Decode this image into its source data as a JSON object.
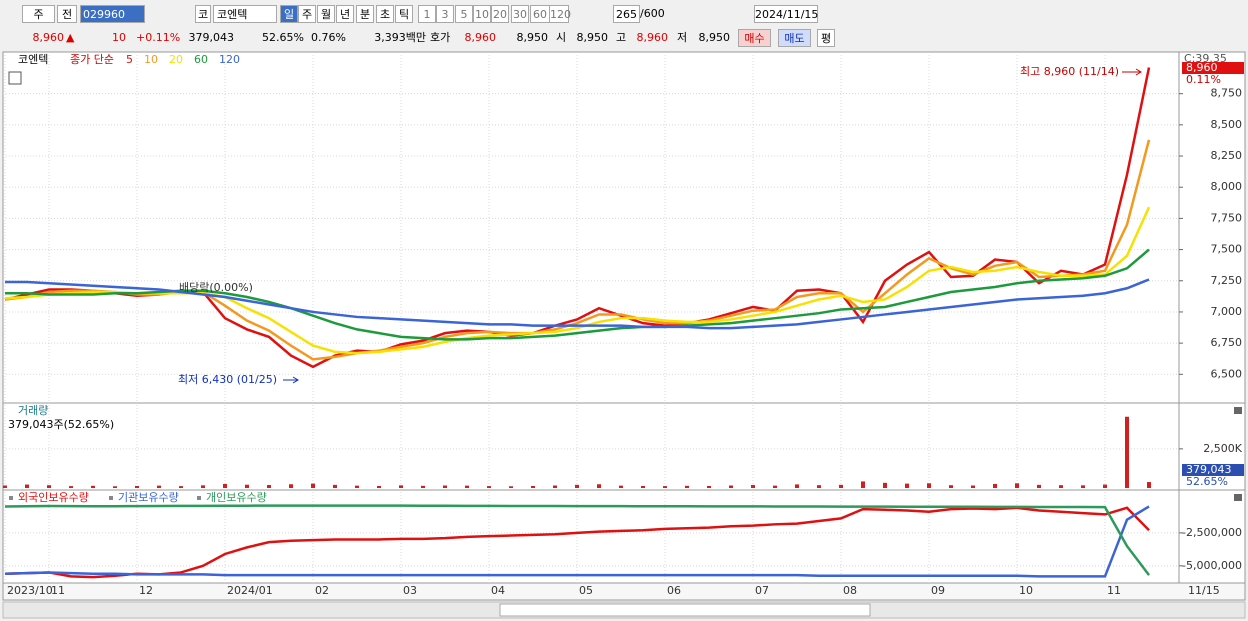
{
  "toolbar": {
    "market": "주",
    "mode": "전",
    "code": "029960",
    "market2": "코",
    "name": "코엔텍",
    "periods": [
      "일",
      "주",
      "월",
      "년",
      "분",
      "초",
      "틱"
    ],
    "intervals": [
      "1",
      "3",
      "5",
      "10",
      "20",
      "30",
      "60",
      "120"
    ],
    "count": "265",
    "max": "/600",
    "date": "2024/11/15"
  },
  "quote": {
    "price": "8,960",
    "arrow": "▲",
    "change": "10",
    "change_pct": "+0.11%",
    "volume": "379,043",
    "volume_ratio": "52.65%",
    "turnover": "0.76%",
    "amount": "3,393백만",
    "ask_label": "호가",
    "ask": "8,960",
    "bid": "8,950",
    "open_label": "시",
    "open": "8,950",
    "high_label": "고",
    "high": "8,960",
    "low_label": "저",
    "low": "8,950",
    "buy": "매수",
    "sell": "매도",
    "avg": "평"
  },
  "chart_data": [
    {
      "type": "line",
      "title": "코엔텍",
      "legend_title": "종가 단순",
      "x_end_label": "11/15",
      "cursor_label": "C:39.35",
      "last_price_label": "8,960",
      "last_change_label": "0.11%",
      "annotations": [
        "최고 8,960 (11/14)",
        "최저 6,430 (01/25)",
        "배당락(0.00%)"
      ],
      "categories": [
        "2023/10",
        null,
        "11",
        null,
        null,
        null,
        "12",
        null,
        null,
        null,
        "2024/01",
        null,
        null,
        null,
        "02",
        null,
        null,
        null,
        "03",
        null,
        null,
        null,
        "04",
        null,
        null,
        null,
        "05",
        null,
        null,
        null,
        "06",
        null,
        null,
        null,
        "07",
        null,
        null,
        null,
        "08",
        null,
        null,
        null,
        "09",
        null,
        null,
        null,
        "10",
        null,
        null,
        null,
        "11",
        null,
        null
      ],
      "ylim": [
        6270,
        9060
      ],
      "yticks": [
        {
          "value": 6500,
          "label": "6,500"
        },
        {
          "value": 6750,
          "label": "6,750"
        },
        {
          "value": 7000,
          "label": "7,000"
        },
        {
          "value": 7250,
          "label": "7,250"
        },
        {
          "value": 7500,
          "label": "7,500"
        },
        {
          "value": 7750,
          "label": "7,750"
        },
        {
          "value": 8000,
          "label": "8,000"
        },
        {
          "value": 8250,
          "label": "8,250"
        },
        {
          "value": 8500,
          "label": "8,500"
        },
        {
          "value": 8750,
          "label": "8,750"
        }
      ],
      "grid": true,
      "series": [
        {
          "name": "5",
          "color": "#e01010",
          "values": [
            7100,
            7140,
            7180,
            7180,
            7170,
            7150,
            7130,
            7140,
            7170,
            7160,
            6950,
            6860,
            6800,
            6650,
            6560,
            6650,
            6690,
            6680,
            6740,
            6770,
            6830,
            6850,
            6840,
            6810,
            6830,
            6890,
            6940,
            7030,
            6970,
            6910,
            6890,
            6910,
            6940,
            6990,
            7040,
            7010,
            7170,
            7180,
            7150,
            6920,
            7250,
            7380,
            7480,
            7280,
            7290,
            7420,
            7400,
            7230,
            7330,
            7300,
            7380,
            8100,
            8960
          ]
        },
        {
          "name": "10",
          "color": "#f39a1e",
          "values": [
            7100,
            7120,
            7160,
            7170,
            7170,
            7160,
            7140,
            7140,
            7160,
            7160,
            7050,
            6930,
            6850,
            6730,
            6620,
            6640,
            6670,
            6690,
            6720,
            6750,
            6800,
            6830,
            6840,
            6830,
            6830,
            6860,
            6910,
            6980,
            6980,
            6940,
            6910,
            6910,
            6930,
            6970,
            7010,
            7020,
            7120,
            7150,
            7150,
            7000,
            7150,
            7300,
            7430,
            7350,
            7300,
            7370,
            7400,
            7280,
            7290,
            7300,
            7330,
            7700,
            8380
          ]
        },
        {
          "name": "20",
          "color": "#f5e200",
          "values": [
            7110,
            7120,
            7140,
            7150,
            7160,
            7160,
            7150,
            7150,
            7150,
            7150,
            7120,
            7030,
            6950,
            6840,
            6730,
            6680,
            6670,
            6680,
            6700,
            6720,
            6760,
            6790,
            6810,
            6820,
            6830,
            6840,
            6870,
            6920,
            6950,
            6950,
            6930,
            6920,
            6920,
            6940,
            6970,
            7000,
            7050,
            7100,
            7130,
            7080,
            7100,
            7200,
            7330,
            7360,
            7320,
            7330,
            7360,
            7320,
            7290,
            7290,
            7300,
            7450,
            7840
          ]
        },
        {
          "name": "60",
          "color": "#1d9a3c",
          "values": [
            7150,
            7150,
            7140,
            7140,
            7140,
            7150,
            7150,
            7160,
            7170,
            7170,
            7150,
            7120,
            7080,
            7030,
            6970,
            6910,
            6860,
            6830,
            6800,
            6790,
            6780,
            6780,
            6790,
            6790,
            6800,
            6810,
            6830,
            6850,
            6870,
            6880,
            6880,
            6890,
            6900,
            6910,
            6930,
            6950,
            6970,
            6990,
            7020,
            7030,
            7040,
            7080,
            7120,
            7160,
            7180,
            7200,
            7230,
            7250,
            7260,
            7270,
            7290,
            7350,
            7500
          ]
        },
        {
          "name": "120",
          "color": "#3a64d8",
          "values": [
            7240,
            7240,
            7230,
            7220,
            7210,
            7200,
            7190,
            7180,
            7160,
            7140,
            7120,
            7090,
            7060,
            7030,
            7000,
            6980,
            6960,
            6950,
            6940,
            6930,
            6920,
            6910,
            6900,
            6900,
            6890,
            6890,
            6890,
            6890,
            6890,
            6880,
            6880,
            6880,
            6870,
            6870,
            6880,
            6890,
            6900,
            6920,
            6940,
            6960,
            6980,
            7000,
            7020,
            7040,
            7060,
            7080,
            7100,
            7110,
            7120,
            7130,
            7150,
            7190,
            7260
          ]
        }
      ]
    },
    {
      "type": "bar",
      "title": "거래량",
      "subtitle": "379,043주(52.65%)",
      "last_value_label": "379,043",
      "last_ratio_label": "52.65%",
      "color": "#d02020",
      "ylim": [
        0,
        5300000
      ],
      "yticks": [
        {
          "value": 2500000,
          "label": "2,500K"
        }
      ],
      "values": [
        160000,
        220000,
        180000,
        120000,
        140000,
        110000,
        130000,
        150000,
        120000,
        170000,
        260000,
        210000,
        190000,
        240000,
        280000,
        200000,
        150000,
        130000,
        170000,
        140000,
        160000,
        150000,
        120000,
        110000,
        130000,
        160000,
        200000,
        240000,
        150000,
        130000,
        120000,
        140000,
        130000,
        160000,
        190000,
        150000,
        230000,
        180000,
        200000,
        420000,
        330000,
        280000,
        300000,
        180000,
        160000,
        260000,
        300000,
        200000,
        180000,
        170000,
        220000,
        4550000,
        379043
      ]
    },
    {
      "type": "line",
      "ylim": [
        -6300000,
        600000
      ],
      "yticks": [
        {
          "value": -2500000,
          "label": "-2,500,000"
        },
        {
          "value": -5000000,
          "label": "-5,000,000"
        }
      ],
      "series": [
        {
          "name": "외국인보유수량",
          "color": "#e01010",
          "values": [
            -5600000,
            -5550000,
            -5500000,
            -5800000,
            -5850000,
            -5750000,
            -5600000,
            -5650000,
            -5500000,
            -5000000,
            -4100000,
            -3600000,
            -3200000,
            -3100000,
            -3050000,
            -3000000,
            -3000000,
            -3000000,
            -2950000,
            -2950000,
            -2900000,
            -2800000,
            -2750000,
            -2700000,
            -2650000,
            -2600000,
            -2500000,
            -2400000,
            -2350000,
            -2300000,
            -2200000,
            -2150000,
            -2100000,
            -2000000,
            -1950000,
            -1850000,
            -1800000,
            -1600000,
            -1400000,
            -700000,
            -750000,
            -800000,
            -900000,
            -700000,
            -650000,
            -700000,
            -600000,
            -800000,
            -900000,
            -1000000,
            -1100000,
            -600000,
            -2300000
          ]
        },
        {
          "name": "기관보유수량",
          "color": "#3a64d8",
          "values": [
            -5600000,
            -5550000,
            -5500000,
            -5550000,
            -5600000,
            -5600000,
            -5650000,
            -5650000,
            -5650000,
            -5650000,
            -5700000,
            -5700000,
            -5700000,
            -5700000,
            -5700000,
            -5700000,
            -5700000,
            -5700000,
            -5700000,
            -5700000,
            -5700000,
            -5700000,
            -5700000,
            -5700000,
            -5700000,
            -5700000,
            -5700000,
            -5700000,
            -5700000,
            -5700000,
            -5700000,
            -5700000,
            -5700000,
            -5700000,
            -5700000,
            -5700000,
            -5700000,
            -5750000,
            -5750000,
            -5750000,
            -5750000,
            -5750000,
            -5750000,
            -5750000,
            -5750000,
            -5750000,
            -5750000,
            -5800000,
            -5800000,
            -5800000,
            -5800000,
            -1500000,
            -500000
          ]
        },
        {
          "name": "개인보유수량",
          "color": "#2c9a5a",
          "values": [
            -500000,
            -480000,
            -460000,
            -470000,
            -480000,
            -480000,
            -470000,
            -460000,
            -450000,
            -450000,
            -440000,
            -440000,
            -430000,
            -430000,
            -430000,
            -430000,
            -430000,
            -430000,
            -430000,
            -440000,
            -440000,
            -450000,
            -450000,
            -460000,
            -460000,
            -460000,
            -470000,
            -470000,
            -470000,
            -480000,
            -480000,
            -480000,
            -490000,
            -490000,
            -490000,
            -500000,
            -500000,
            -500000,
            -510000,
            -510000,
            -510000,
            -520000,
            -520000,
            -520000,
            -520000,
            -530000,
            -530000,
            -540000,
            -540000,
            -540000,
            -550000,
            -3500000,
            -5700000
          ]
        }
      ]
    }
  ]
}
